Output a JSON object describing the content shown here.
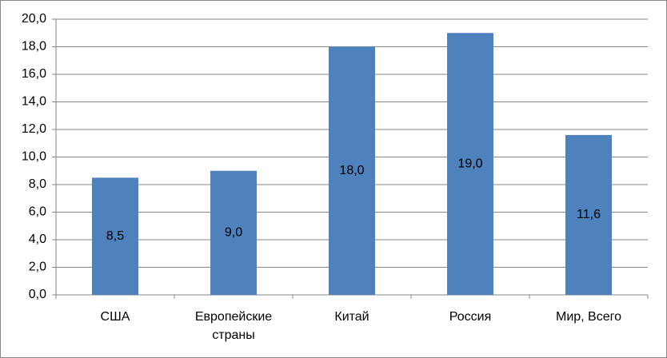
{
  "chart_data": {
    "type": "bar",
    "categories": [
      "США",
      "Европейские страны",
      "Китай",
      "Россия",
      "Мир, Всего"
    ],
    "values": [
      8.5,
      9.0,
      18.0,
      19.0,
      11.6
    ],
    "value_labels": [
      "8,5",
      "9,0",
      "18,0",
      "19,0",
      "11,6"
    ],
    "color": "#4f81bd",
    "ylim": [
      0,
      20
    ],
    "yticks": [
      {
        "value": 0,
        "label": "0,0"
      },
      {
        "value": 2,
        "label": "2,0"
      },
      {
        "value": 4,
        "label": "4,0"
      },
      {
        "value": 6,
        "label": "6,0"
      },
      {
        "value": 8,
        "label": "8,0"
      },
      {
        "value": 10,
        "label": "10,0"
      },
      {
        "value": 12,
        "label": "12,0"
      },
      {
        "value": 14,
        "label": "14,0"
      },
      {
        "value": 16,
        "label": "16,0"
      },
      {
        "value": 18,
        "label": "18,0"
      },
      {
        "value": 20,
        "label": "20,0"
      }
    ],
    "grid": true
  }
}
